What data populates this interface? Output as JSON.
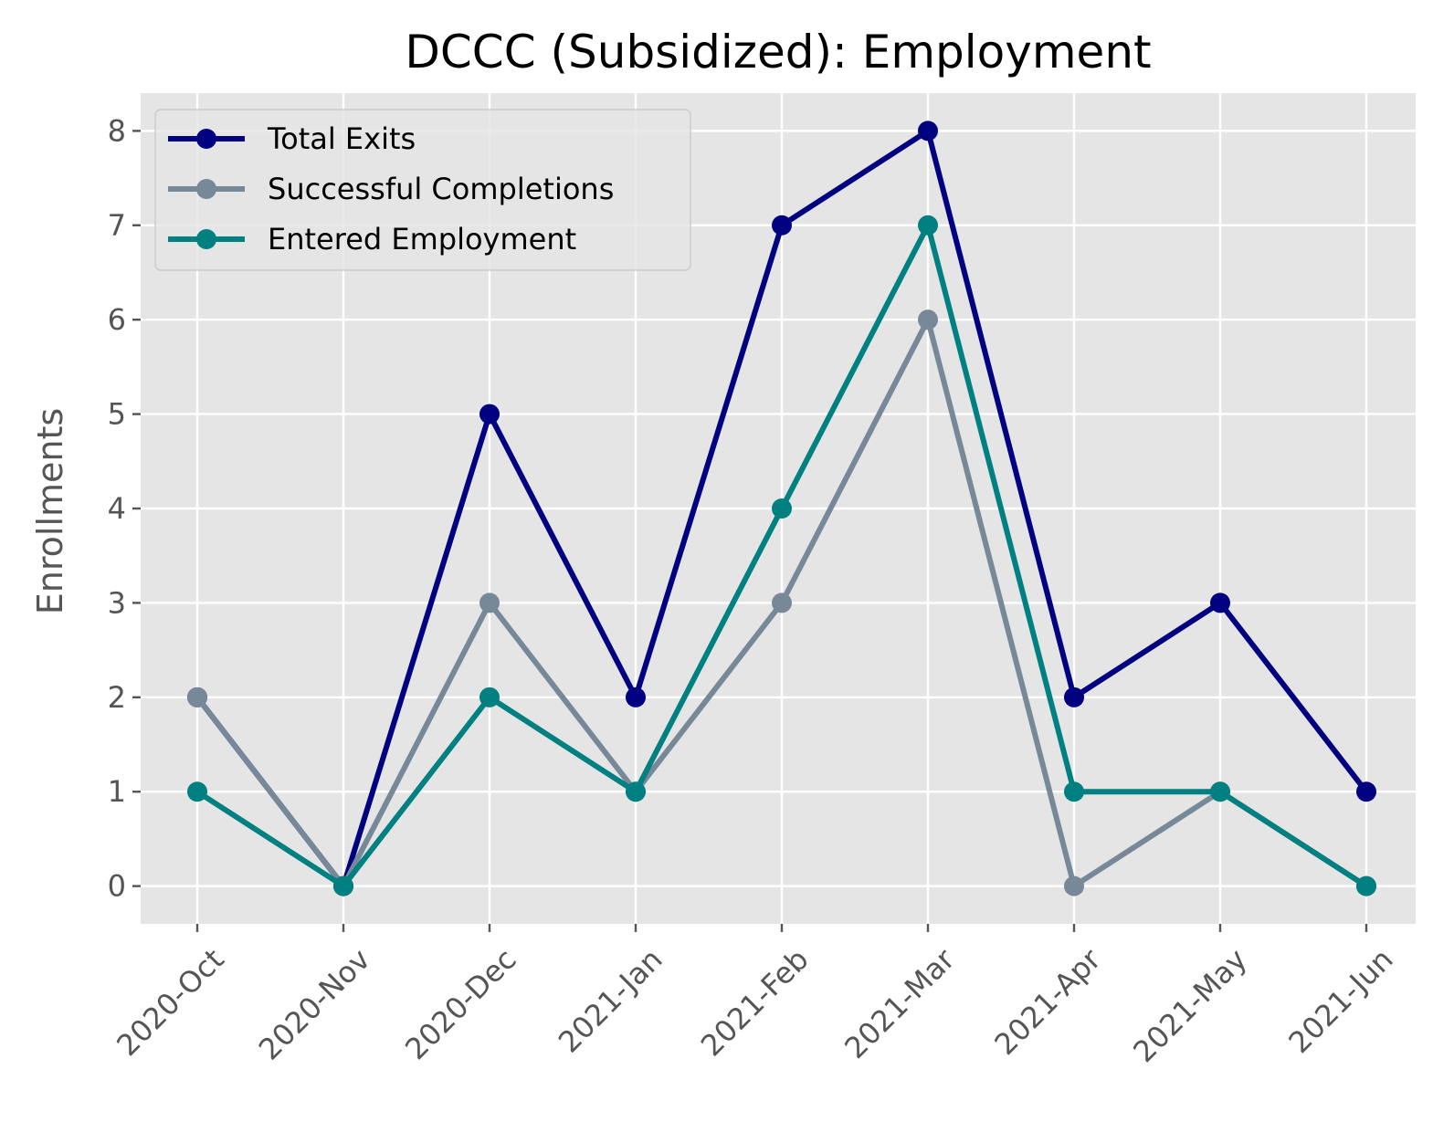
{
  "chart_data": {
    "type": "line",
    "title": "DCCC (Subsidized): Employment",
    "xlabel": "",
    "ylabel": "Enrollments",
    "categories": [
      "2020-Oct",
      "2020-Nov",
      "2020-Dec",
      "2021-Jan",
      "2021-Feb",
      "2021-Mar",
      "2021-Apr",
      "2021-May",
      "2021-Jun"
    ],
    "yticks": [
      "0",
      "1",
      "2",
      "3",
      "4",
      "5",
      "6",
      "7",
      "8"
    ],
    "ylim": [
      -0.4,
      8.4
    ],
    "grid": true,
    "legend_position": "top-left",
    "series": [
      {
        "name": "Total Exits",
        "color": "#000080",
        "values": [
          2,
          0,
          5,
          2,
          7,
          8,
          2,
          3,
          1
        ]
      },
      {
        "name": "Successful Completions",
        "color": "#778899",
        "values": [
          2,
          0,
          3,
          1,
          3,
          6,
          0,
          1,
          0
        ]
      },
      {
        "name": "Entered Employment",
        "color": "#008080",
        "values": [
          1,
          0,
          2,
          1,
          4,
          7,
          1,
          1,
          0
        ]
      }
    ]
  }
}
